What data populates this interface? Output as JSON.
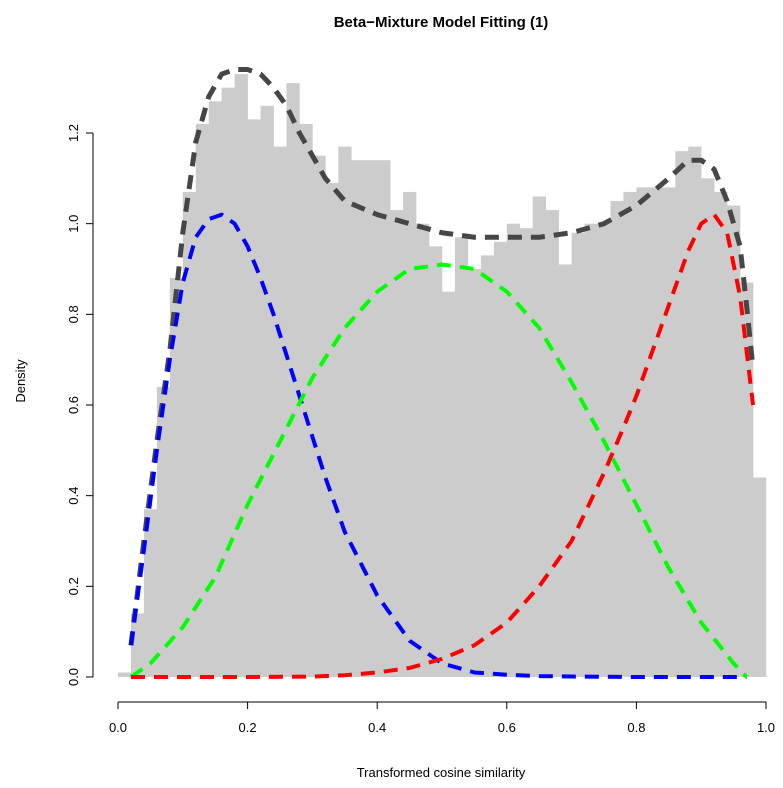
{
  "chart_data": {
    "type": "histogram",
    "title": "Beta−Mixture Model Fitting (1)",
    "xlabel": "Transformed cosine similarity",
    "ylabel": "Density",
    "xlim": [
      0,
      1
    ],
    "ylim": [
      0,
      1.35
    ],
    "xticks": [
      0.0,
      0.2,
      0.4,
      0.6,
      0.8,
      1.0
    ],
    "xtick_labels": [
      "0.0",
      "0.2",
      "0.4",
      "0.6",
      "0.8",
      "1.0"
    ],
    "yticks": [
      0.0,
      0.2,
      0.4,
      0.6,
      0.8,
      1.0,
      1.2
    ],
    "ytick_labels": [
      "0.0",
      "0.2",
      "0.4",
      "0.6",
      "0.8",
      "1.0",
      "1.2"
    ],
    "histogram": {
      "color": "#cccccc",
      "bin_width": 0.02,
      "bin_starts": [
        0.0,
        0.02,
        0.04,
        0.06,
        0.08,
        0.1,
        0.12,
        0.14,
        0.16,
        0.18,
        0.2,
        0.22,
        0.24,
        0.26,
        0.28,
        0.3,
        0.32,
        0.34,
        0.36,
        0.38,
        0.4,
        0.42,
        0.44,
        0.46,
        0.48,
        0.5,
        0.52,
        0.54,
        0.56,
        0.58,
        0.6,
        0.62,
        0.64,
        0.66,
        0.68,
        0.7,
        0.72,
        0.74,
        0.76,
        0.78,
        0.8,
        0.82,
        0.84,
        0.86,
        0.88,
        0.9,
        0.92,
        0.94,
        0.96,
        0.98
      ],
      "densities": [
        0.01,
        0.14,
        0.37,
        0.64,
        0.88,
        1.07,
        1.22,
        1.27,
        1.3,
        1.33,
        1.23,
        1.26,
        1.17,
        1.31,
        1.22,
        1.15,
        1.09,
        1.17,
        1.14,
        1.14,
        1.14,
        1.03,
        1.07,
        1.0,
        0.95,
        0.85,
        0.97,
        0.9,
        0.93,
        0.96,
        1.0,
        0.99,
        1.06,
        1.03,
        0.91,
        0.98,
        1.0,
        1.0,
        1.05,
        1.07,
        1.08,
        1.08,
        1.08,
        1.16,
        1.17,
        1.1,
        1.07,
        1.04,
        0.87,
        0.44
      ]
    },
    "series": [
      {
        "component": "total",
        "color": "#464646",
        "x": [
          0.02,
          0.04,
          0.06,
          0.08,
          0.1,
          0.12,
          0.14,
          0.16,
          0.18,
          0.2,
          0.22,
          0.24,
          0.26,
          0.28,
          0.3,
          0.32,
          0.35,
          0.4,
          0.45,
          0.5,
          0.55,
          0.6,
          0.65,
          0.7,
          0.75,
          0.8,
          0.85,
          0.88,
          0.9,
          0.92,
          0.94,
          0.96,
          0.97,
          0.98
        ],
        "y": [
          0.07,
          0.3,
          0.52,
          0.72,
          0.98,
          1.18,
          1.28,
          1.33,
          1.34,
          1.34,
          1.33,
          1.3,
          1.26,
          1.2,
          1.15,
          1.1,
          1.05,
          1.02,
          1.0,
          0.98,
          0.97,
          0.97,
          0.97,
          0.98,
          1.0,
          1.04,
          1.1,
          1.14,
          1.14,
          1.12,
          1.05,
          0.95,
          0.82,
          0.68
        ]
      },
      {
        "component": "component-1",
        "color": "#0000ff",
        "x": [
          0.02,
          0.04,
          0.06,
          0.08,
          0.1,
          0.12,
          0.14,
          0.16,
          0.18,
          0.2,
          0.22,
          0.24,
          0.26,
          0.28,
          0.3,
          0.32,
          0.35,
          0.4,
          0.45,
          0.5,
          0.55,
          0.6,
          0.65,
          0.7,
          0.8,
          0.9,
          0.97
        ],
        "y": [
          0.07,
          0.28,
          0.5,
          0.7,
          0.87,
          0.97,
          1.01,
          1.02,
          1.0,
          0.95,
          0.88,
          0.8,
          0.71,
          0.62,
          0.53,
          0.44,
          0.32,
          0.18,
          0.08,
          0.03,
          0.01,
          0.005,
          0.002,
          0.001,
          0.0,
          0.0,
          0.0
        ]
      },
      {
        "component": "component-2",
        "color": "#00ff00",
        "x": [
          0.02,
          0.05,
          0.1,
          0.15,
          0.2,
          0.25,
          0.3,
          0.35,
          0.4,
          0.45,
          0.5,
          0.55,
          0.6,
          0.65,
          0.7,
          0.75,
          0.8,
          0.85,
          0.9,
          0.95,
          0.97
        ],
        "y": [
          0.0,
          0.03,
          0.11,
          0.22,
          0.38,
          0.52,
          0.66,
          0.77,
          0.85,
          0.9,
          0.91,
          0.9,
          0.85,
          0.77,
          0.65,
          0.52,
          0.38,
          0.24,
          0.12,
          0.03,
          0.0
        ]
      },
      {
        "component": "component-3",
        "color": "#ff0000",
        "x": [
          0.02,
          0.1,
          0.2,
          0.3,
          0.35,
          0.4,
          0.45,
          0.5,
          0.55,
          0.6,
          0.65,
          0.7,
          0.75,
          0.78,
          0.8,
          0.83,
          0.86,
          0.88,
          0.9,
          0.92,
          0.94,
          0.96,
          0.97,
          0.98
        ],
        "y": [
          0.0,
          0.0,
          0.0,
          0.001,
          0.004,
          0.01,
          0.02,
          0.04,
          0.07,
          0.12,
          0.2,
          0.3,
          0.45,
          0.55,
          0.62,
          0.74,
          0.86,
          0.94,
          1.0,
          1.02,
          0.98,
          0.84,
          0.72,
          0.6
        ]
      }
    ]
  }
}
